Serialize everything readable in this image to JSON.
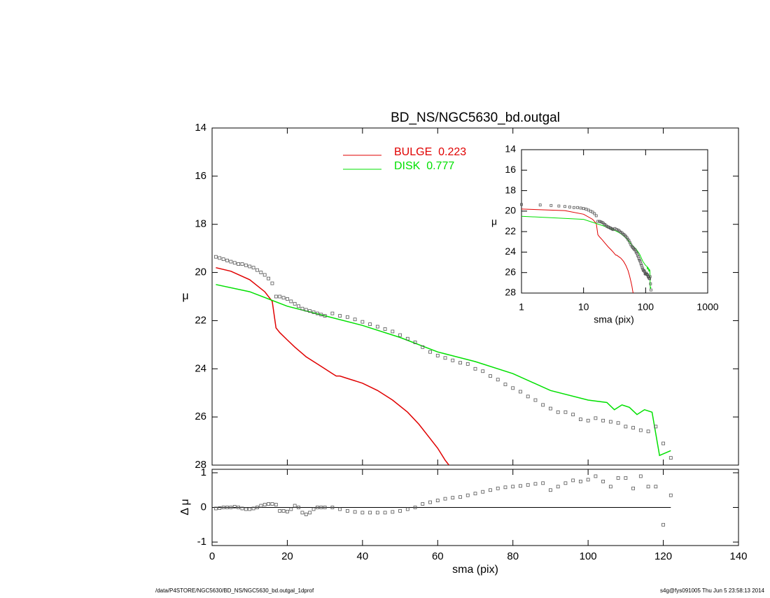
{
  "chart_data": [
    {
      "type": "line",
      "title": "BD_NS/NGC5630_bd.outgal",
      "ylabel": "μ",
      "ylim": [
        28,
        14
      ],
      "yticks": [
        14,
        16,
        18,
        20,
        22,
        24,
        26,
        28
      ],
      "series": [
        {
          "name": "BULGE  0.223",
          "color": "#e00000",
          "x": [
            1,
            5,
            10,
            14,
            16,
            17,
            18,
            20,
            22,
            25,
            28,
            30,
            32,
            33,
            34,
            36,
            40,
            44,
            48,
            52,
            55,
            58,
            60,
            62,
            63
          ],
          "values": [
            19.8,
            19.95,
            20.3,
            20.8,
            21.2,
            22.3,
            22.5,
            22.8,
            23.1,
            23.5,
            23.8,
            24.0,
            24.2,
            24.3,
            24.3,
            24.4,
            24.6,
            24.9,
            25.3,
            25.8,
            26.3,
            26.9,
            27.3,
            27.8,
            28.0
          ]
        },
        {
          "name": "DISK  0.777",
          "color": "#00e000",
          "x": [
            1,
            10,
            20,
            30,
            40,
            50,
            60,
            70,
            80,
            90,
            100,
            105,
            107,
            109,
            111,
            113,
            115,
            117,
            119,
            122
          ],
          "values": [
            20.5,
            20.8,
            21.4,
            21.8,
            22.2,
            22.7,
            23.3,
            23.7,
            24.2,
            24.9,
            25.3,
            25.4,
            25.7,
            25.5,
            25.6,
            25.9,
            25.7,
            25.8,
            27.6,
            27.4
          ]
        },
        {
          "marker": "square",
          "color": "#555555",
          "x": [
            1,
            2,
            3,
            4,
            5,
            6,
            7,
            8,
            9,
            10,
            11,
            12,
            13,
            14,
            15,
            16,
            17,
            18,
            19,
            20,
            21,
            22,
            23,
            24,
            25,
            26,
            27,
            28,
            29,
            30,
            32,
            34,
            36,
            38,
            40,
            42,
            44,
            46,
            48,
            50,
            52,
            54,
            56,
            58,
            60,
            62,
            64,
            66,
            68,
            70,
            72,
            74,
            76,
            78,
            80,
            82,
            84,
            86,
            88,
            90,
            92,
            94,
            96,
            98,
            100,
            102,
            104,
            106,
            108,
            110,
            112,
            114,
            116,
            118,
            120,
            122
          ],
          "values": [
            19.35,
            19.4,
            19.45,
            19.5,
            19.55,
            19.6,
            19.65,
            19.65,
            19.7,
            19.75,
            19.8,
            19.9,
            20.0,
            20.1,
            20.25,
            20.45,
            21.0,
            21.0,
            21.05,
            21.1,
            21.2,
            21.3,
            21.4,
            21.5,
            21.55,
            21.6,
            21.65,
            21.7,
            21.75,
            21.8,
            21.7,
            21.8,
            21.85,
            21.95,
            22.05,
            22.15,
            22.25,
            22.35,
            22.45,
            22.6,
            22.75,
            22.9,
            23.1,
            23.3,
            23.45,
            23.55,
            23.65,
            23.75,
            23.8,
            24.0,
            24.1,
            24.3,
            24.45,
            24.65,
            24.8,
            24.95,
            25.15,
            25.3,
            25.5,
            25.65,
            25.8,
            25.8,
            25.9,
            26.1,
            26.15,
            26.05,
            26.15,
            26.2,
            26.25,
            26.4,
            26.45,
            26.55,
            26.6,
            26.4,
            27.1,
            27.7
          ]
        }
      ]
    },
    {
      "type": "scatter",
      "ylabel": "Δ μ",
      "xlabel": "sma (pix)",
      "xlim": [
        0,
        140
      ],
      "xticks": [
        0,
        20,
        40,
        60,
        80,
        100,
        120,
        140
      ],
      "ylim": [
        -1.1,
        1.1
      ],
      "yticks": [
        -1,
        0,
        1
      ],
      "marker": "square",
      "color": "#555555",
      "values": [
        -0.03,
        -0.02,
        0,
        0,
        0,
        0.02,
        0,
        -0.03,
        -0.05,
        -0.05,
        -0.03,
        0,
        0.05,
        0.08,
        0.1,
        0.1,
        0.08,
        -0.1,
        -0.1,
        -0.12,
        -0.05,
        0.05,
        0,
        -0.15,
        -0.2,
        -0.15,
        -0.05,
        0,
        0,
        0,
        0,
        -0.05,
        -0.1,
        -0.13,
        -0.15,
        -0.15,
        -0.15,
        -0.15,
        -0.13,
        -0.1,
        -0.05,
        0,
        0.1,
        0.15,
        0.2,
        0.25,
        0.28,
        0.3,
        0.35,
        0.4,
        0.45,
        0.5,
        0.55,
        0.58,
        0.6,
        0.62,
        0.65,
        0.68,
        0.7,
        0.5,
        0.6,
        0.7,
        0.78,
        0.75,
        0.8,
        0.9,
        0.75,
        0.6,
        0.85,
        0.85,
        0.55,
        0.9,
        0.6,
        0.6,
        -0.5,
        0.35
      ]
    },
    {
      "type": "inset",
      "xlabel": "sma (pix)",
      "ylabel": "μ",
      "log_x": true,
      "xlim": [
        1,
        1000
      ],
      "xticks": [
        1,
        10,
        100,
        1000
      ],
      "ylim": [
        28,
        14
      ],
      "yticks": [
        14,
        16,
        18,
        20,
        22,
        24,
        26,
        28
      ]
    }
  ],
  "footer": {
    "left": "/data/P4STORE/NGC5630/BD_NS/NGC5630_bd.outgal_1dprof",
    "right": "s4g@fys091005  Thu Jun  5 23:58:13 2014"
  }
}
